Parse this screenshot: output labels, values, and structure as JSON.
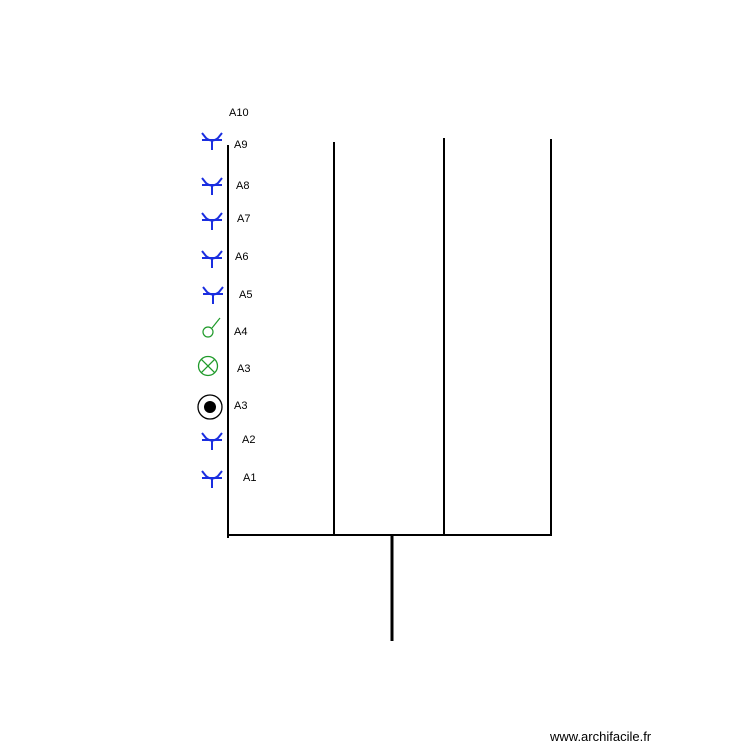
{
  "colors": {
    "socket": "#1a2ee0",
    "switch": "#1f9a2a",
    "lamp": "#1f9a2a",
    "lines": "#000000"
  },
  "symbols": [
    {
      "label": "A10",
      "icon": "none"
    },
    {
      "label": "A9",
      "icon": "socket-icon"
    },
    {
      "label": "A8",
      "icon": "socket-icon"
    },
    {
      "label": "A7",
      "icon": "socket-icon"
    },
    {
      "label": "A6",
      "icon": "socket-icon"
    },
    {
      "label": "A5",
      "icon": "socket-icon"
    },
    {
      "label": "A4",
      "icon": "switch-icon"
    },
    {
      "label": "A3",
      "icon": "lamp-icon"
    },
    {
      "label": "A3",
      "icon": "light-point-icon"
    },
    {
      "label": "A2",
      "icon": "socket-icon"
    },
    {
      "label": "A1",
      "icon": "socket-icon"
    }
  ],
  "watermark": "www.archifacile.fr"
}
